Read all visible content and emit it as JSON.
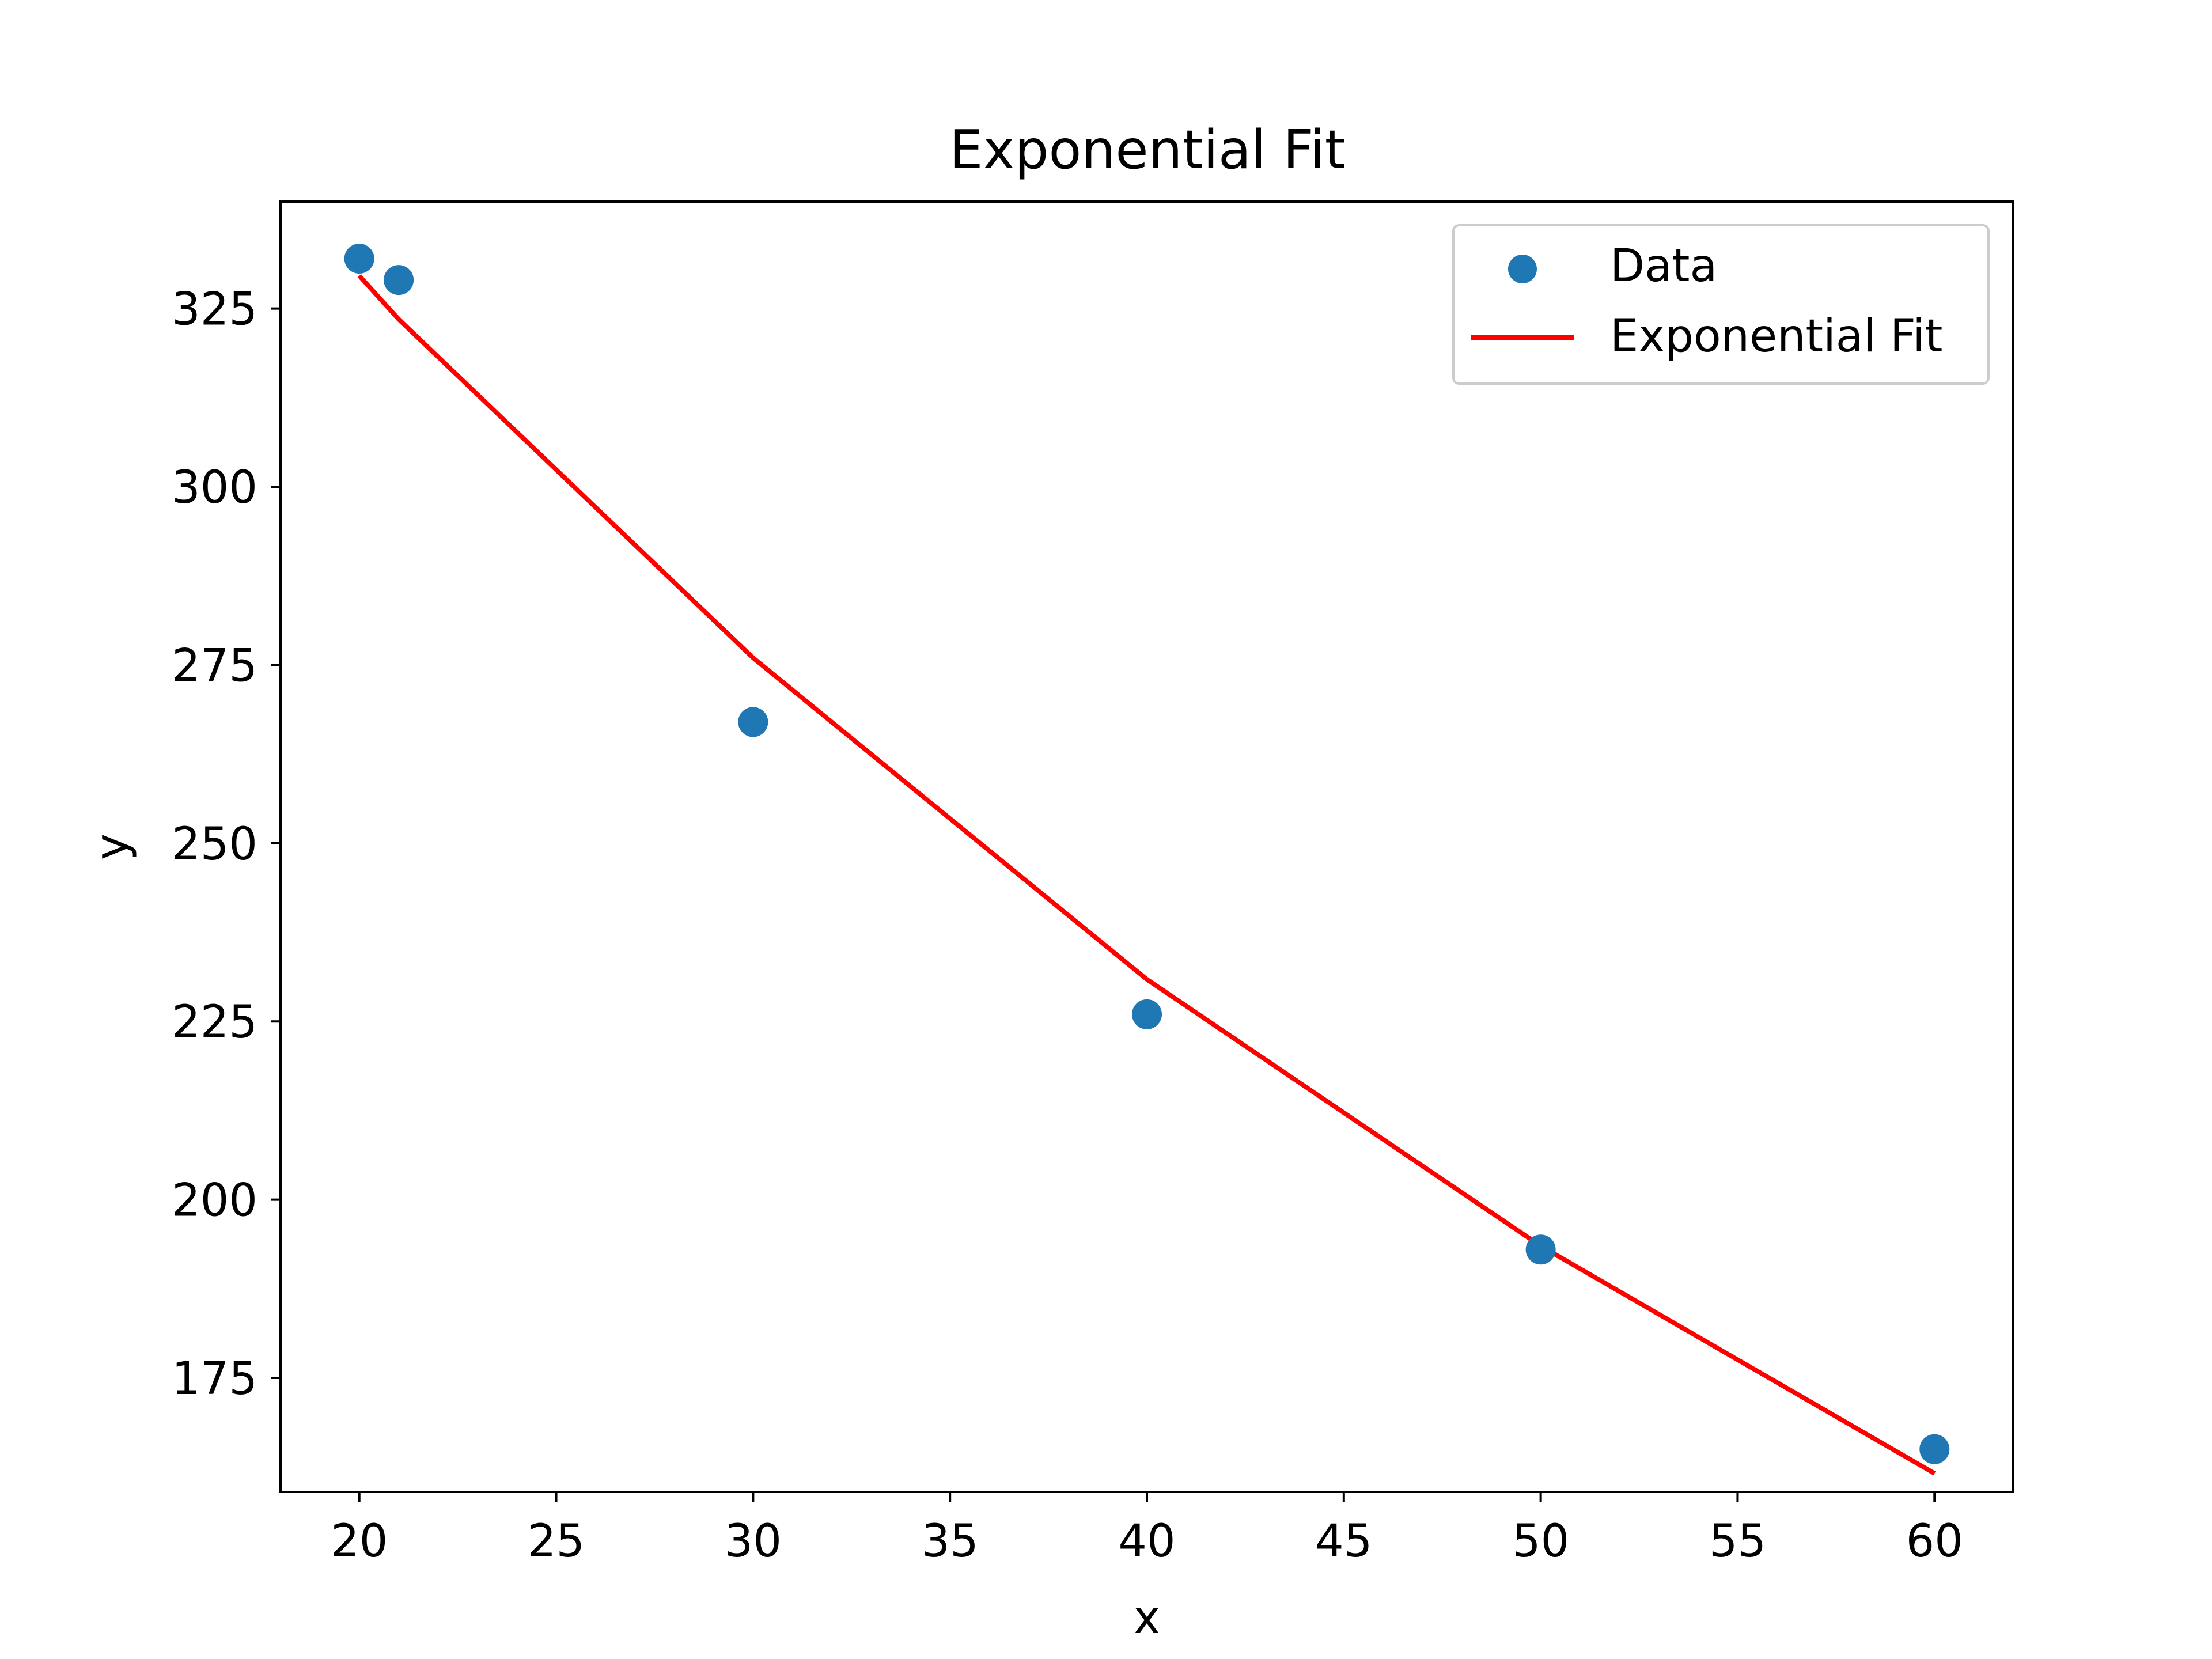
{
  "chart_data": {
    "type": "scatter",
    "title": "Exponential Fit",
    "xlabel": "x",
    "ylabel": "y",
    "xlim": [
      18,
      62
    ],
    "ylim": [
      159,
      340
    ],
    "xticks": [
      20,
      25,
      30,
      35,
      40,
      45,
      50,
      55,
      60
    ],
    "yticks": [
      175,
      200,
      225,
      250,
      275,
      300,
      325
    ],
    "grid": false,
    "legend_position": "top-right",
    "series": [
      {
        "name": "Data",
        "kind": "scatter",
        "color": "#1f77b4",
        "points": [
          {
            "x": 20,
            "y": 332
          },
          {
            "x": 21,
            "y": 329
          },
          {
            "x": 30,
            "y": 267
          },
          {
            "x": 40,
            "y": 226
          },
          {
            "x": 50,
            "y": 193
          },
          {
            "x": 60,
            "y": 165
          }
        ]
      },
      {
        "name": "Exponential Fit",
        "kind": "line",
        "color": "#ff0000",
        "points": [
          {
            "x": 20,
            "y": 329.6
          },
          {
            "x": 21,
            "y": 323.5
          },
          {
            "x": 30,
            "y": 276.0
          },
          {
            "x": 40,
            "y": 230.9
          },
          {
            "x": 50,
            "y": 193.5
          },
          {
            "x": 60,
            "y": 161.6
          }
        ]
      }
    ]
  }
}
